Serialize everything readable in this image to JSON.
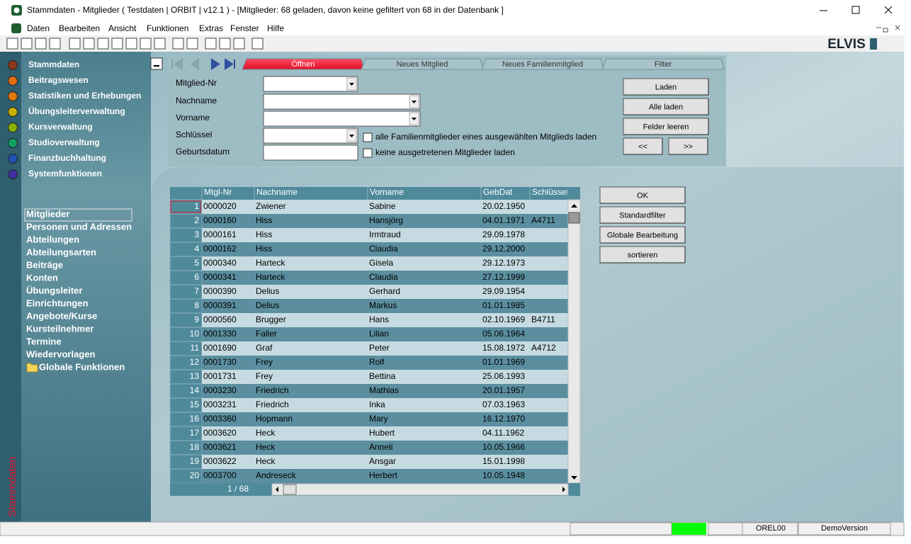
{
  "window": {
    "title": "Stammdaten - Mitglieder  ( Testdaten | ORBIT | v12.1 ) - [Mitglieder: 68 geladen, davon keine gefiltert  von 68 in der Datenbank  ]"
  },
  "menu": [
    "Daten",
    "Bearbeiten",
    "Ansicht",
    "Funktionen",
    "Extras",
    "Fenster",
    "Hilfe"
  ],
  "brand": "ELVIS",
  "sidebar": {
    "modules": [
      "Stammdaten",
      "Beitragswesen",
      "Statistiken und Erhebungen",
      "Übungsleiterverwaltung",
      "Kursverwaltung",
      "Studioverwaltung",
      "Finanzbuchhaltung",
      "Systemfunktionen"
    ],
    "items": [
      "Mitglieder",
      "Personen und Adressen",
      "Abteilungen",
      "Abteilungsarten",
      "Beiträge",
      "Konten",
      "Übungsleiter",
      "Einrichtungen",
      "Angebote/Kurse",
      "Kursteilnehmer",
      "Termine",
      "Wiedervorlagen",
      "Globale Funktionen"
    ],
    "vertical_label": "Stammdaten"
  },
  "tabs": [
    "Öffnen",
    "Neues Mitglied",
    "Neues Familienmitglied",
    "Filter"
  ],
  "form": {
    "fields": [
      "Mitglied-Nr",
      "Nachname",
      "Vorname",
      "Schlüssel",
      "Geburtsdatum"
    ],
    "checkboxes": [
      "alle Familienmitglieder eines ausgewählten Mitglieds laden",
      "keine ausgetretenen Mitglieder laden"
    ],
    "buttons": [
      "Laden",
      "Alle laden",
      "Felder leeren",
      "<<",
      ">>"
    ]
  },
  "table": {
    "columns": [
      "Mtgl-Nr",
      "Nachname",
      "Vorname",
      "GebDat",
      "Schlüssel"
    ],
    "rows": [
      [
        1,
        "0000020",
        "Zwiener",
        "Sabine",
        "20.02.1950",
        null
      ],
      [
        2,
        "0000160",
        "Hiss",
        "Hansjörg",
        "04.01.1971",
        "A4711"
      ],
      [
        3,
        "0000161",
        "Hiss",
        "Irmtraud",
        "29.09.1978",
        null
      ],
      [
        4,
        "0000162",
        "Hiss",
        "Claudia",
        "29.12.2000",
        null
      ],
      [
        5,
        "0000340",
        "Harteck",
        "Gisela",
        "29.12.1973",
        null
      ],
      [
        6,
        "0000341",
        "Harteck",
        "Claudia",
        "27.12.1999",
        null
      ],
      [
        7,
        "0000390",
        "Delius",
        "Gerhard",
        "29.09.1954",
        null
      ],
      [
        8,
        "0000391",
        "Delius",
        "Markus",
        "01.01.1985",
        null
      ],
      [
        9,
        "0000560",
        "Brugger",
        "Hans",
        "02.10.1969",
        "B4711"
      ],
      [
        10,
        "0001330",
        "Faller",
        "Lilian",
        "05.06.1964",
        null
      ],
      [
        11,
        "0001690",
        "Graf",
        "Peter",
        "15.08.1972",
        "A4712"
      ],
      [
        12,
        "0001730",
        "Frey",
        "Rolf",
        "01.01.1969",
        null
      ],
      [
        13,
        "0001731",
        "Frey",
        "Bettina",
        "25.06.1993",
        null
      ],
      [
        14,
        "0003230",
        "Friedrich",
        "Mathias",
        "20.01.1957",
        null
      ],
      [
        15,
        "0003231",
        "Friedrich",
        "Inka",
        "07.03.1963",
        null
      ],
      [
        16,
        "0003360",
        "Hopmann",
        "Mary",
        "16.12.1970",
        null
      ],
      [
        17,
        "0003620",
        "Heck",
        "Hubert",
        "04.11.1962",
        null
      ],
      [
        18,
        "0003621",
        "Heck",
        "Anneli",
        "10.05.1966",
        null
      ],
      [
        19,
        "0003622",
        "Heck",
        "Ansgar",
        "15.01.1998",
        null
      ],
      [
        20,
        "0003700",
        "Andreseck",
        "Herbert",
        "10.05.1948",
        null
      ]
    ],
    "pager": "1 / 68"
  },
  "actions": [
    "OK",
    "Standardfilter",
    "Globale Bearbeitung",
    "sortieren"
  ],
  "status": [
    "OREL00",
    "DemoVersion"
  ]
}
